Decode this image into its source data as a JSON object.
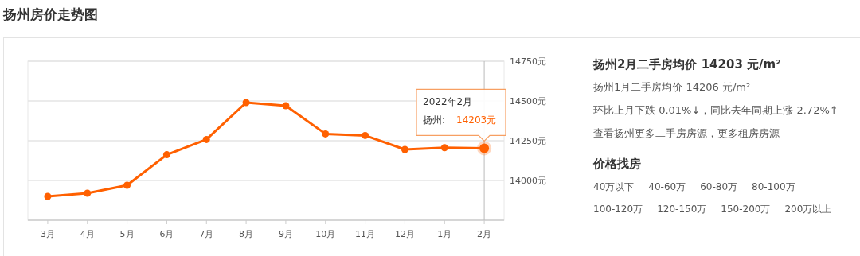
{
  "chart_data": [
    {
      "type": "line",
      "title": "扬州房价走势图",
      "categories": [
        "3月",
        "4月",
        "5月",
        "6月",
        "7月",
        "8月",
        "9月",
        "10月",
        "11月",
        "12月",
        "1月",
        "2月"
      ],
      "values": [
        13900,
        13920,
        13970,
        14162,
        14258,
        14490,
        14470,
        14293,
        14283,
        14195,
        14206,
        14203
      ],
      "color": "#ff6000",
      "ylim": [
        13750,
        14750
      ],
      "yticks": [
        {
          "value": 14000,
          "label": "14000元"
        },
        {
          "value": 14250,
          "label": "14250元"
        },
        {
          "value": 14500,
          "label": "14500元"
        },
        {
          "value": 14750,
          "label": "14750元"
        }
      ],
      "grid": "y",
      "marker": "circle",
      "line_style": "solid",
      "ref_lines": [
        {
          "axis": "x",
          "value": "2月",
          "color": "#bbbbbb"
        }
      ],
      "annotations": [
        "2022年2月",
        "扬州: 14203元"
      ]
    },
    {
      "type": "other",
      "title": "扬州2月二手房均价 14203 元/m²",
      "annotations": [
        "扬州1月二手房均价 14206 元/m²",
        "环比上月下跌 0.01%↓，同比去年同期上涨 2.72%↑",
        "查看扬州更多二手房房源，更多租房房源"
      ],
      "subtitle": "价格找房",
      "categories": [
        "40万以下",
        "40-60万",
        "60-80万",
        "80-100万",
        "100-120万",
        "120-150万",
        "150-200万",
        "200万以上"
      ]
    }
  ]
}
